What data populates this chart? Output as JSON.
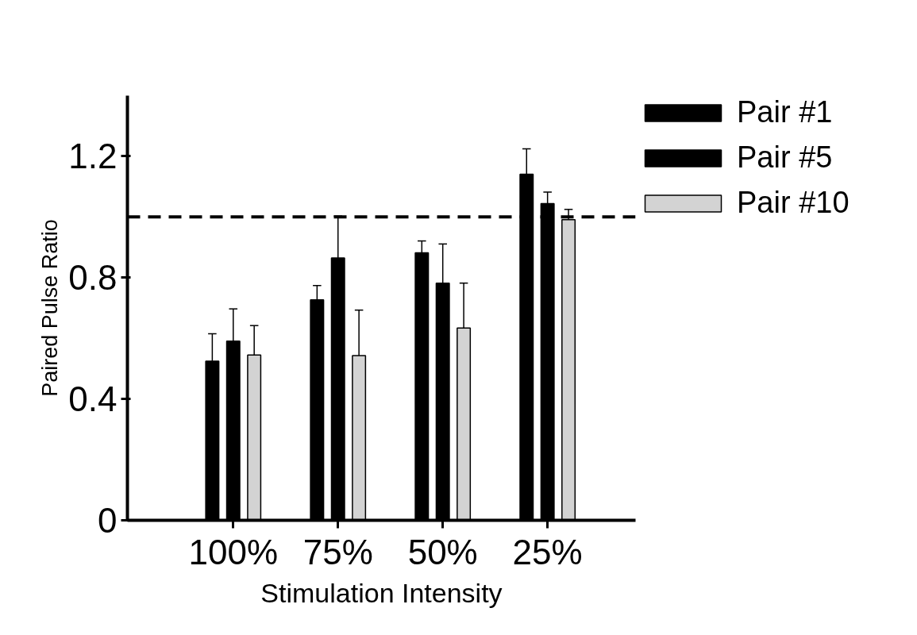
{
  "chart_data": {
    "type": "bar",
    "xlabel": "Stimulation Intensity",
    "ylabel": "Paired Pulse Ratio",
    "categories": [
      "100%",
      "75%",
      "50%",
      "25%"
    ],
    "series": [
      {
        "name": "Pair #1",
        "color": "#000000",
        "values": [
          0.525,
          0.727,
          0.882,
          1.141
        ],
        "errors": [
          [
            0.525,
            0.615
          ],
          [
            0.727,
            0.774
          ],
          [
            0.882,
            0.921
          ],
          [
            1.141,
            1.225
          ]
        ]
      },
      {
        "name": "Pair #5",
        "color": "#000000",
        "values": [
          0.591,
          0.865,
          0.782,
          1.044
        ],
        "errors": [
          [
            0.591,
            0.697
          ],
          [
            0.865,
            1.003
          ],
          [
            0.782,
            0.911
          ],
          [
            1.044,
            1.082
          ]
        ]
      },
      {
        "name": "Pair #10",
        "color": "#d3d3d3",
        "values": [
          0.545,
          0.543,
          0.634,
          0.991
        ],
        "errors": [
          [
            0.545,
            0.642
          ],
          [
            0.543,
            0.693
          ],
          [
            0.634,
            0.782
          ],
          [
            0.991,
            1.025
          ]
        ]
      }
    ],
    "ylim": [
      0,
      1.4
    ],
    "yticks": [
      0,
      0.4,
      0.8,
      1.2
    ],
    "ref_lines": [
      {
        "axis": "y",
        "value": 1.0,
        "line_style": "dashed",
        "color": "#000000"
      }
    ],
    "grid": false,
    "legend": "top right"
  }
}
